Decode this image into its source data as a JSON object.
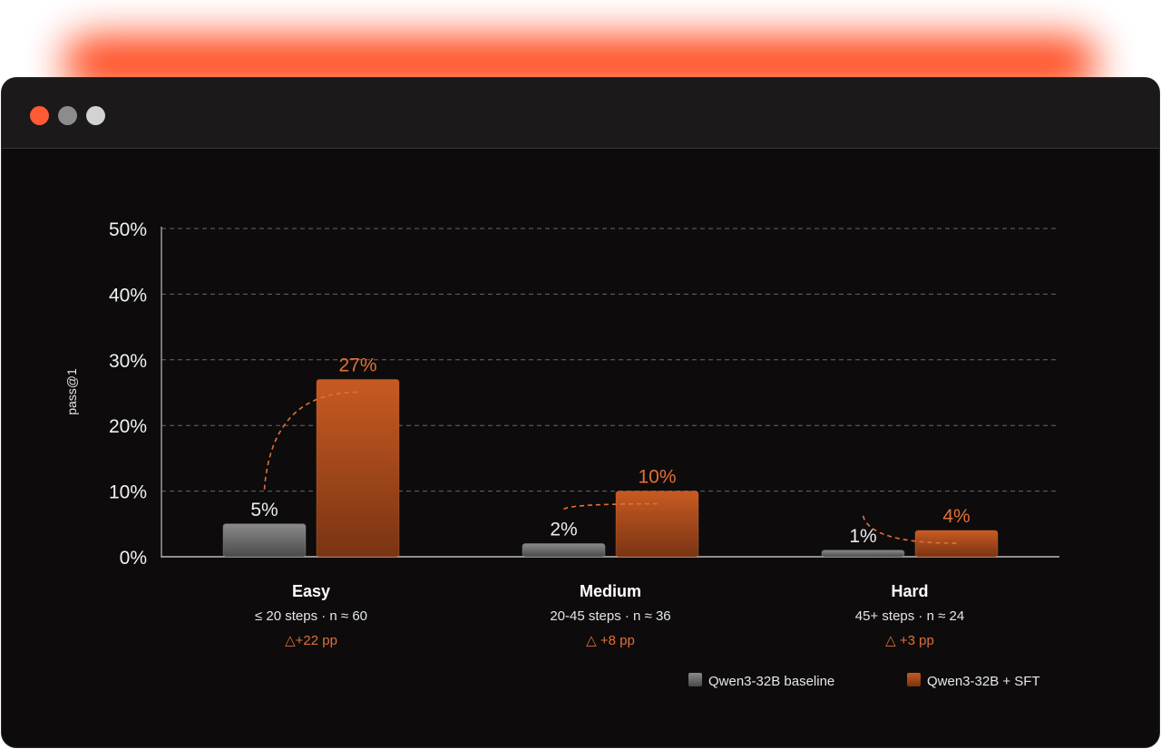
{
  "chart_data": {
    "type": "bar",
    "ylabel": "pass@1",
    "ylim": [
      0,
      50
    ],
    "yticks": [
      "0%",
      "10%",
      "20%",
      "30%",
      "40%",
      "50%"
    ],
    "grid": true,
    "legend_position": "bottom-right",
    "categories": [
      {
        "name": "Easy",
        "subtitle": "≤ 20 steps · n ≈ 60",
        "delta": "△+22 pp"
      },
      {
        "name": "Medium",
        "subtitle": "20-45 steps · n ≈ 36",
        "delta": "△ +8 pp"
      },
      {
        "name": "Hard",
        "subtitle": "45+ steps · n ≈ 24",
        "delta": "△ +3 pp"
      }
    ],
    "series": [
      {
        "name": "Qwen3-32B baseline",
        "color": "#7a7a7a",
        "values": [
          5,
          2,
          1
        ],
        "labels": [
          "5%",
          "2%",
          "1%"
        ]
      },
      {
        "name": "Qwen3-32B + SFT",
        "color": "#c4561f",
        "values": [
          27,
          10,
          4
        ],
        "labels": [
          "27%",
          "10%",
          "4%"
        ]
      }
    ]
  }
}
